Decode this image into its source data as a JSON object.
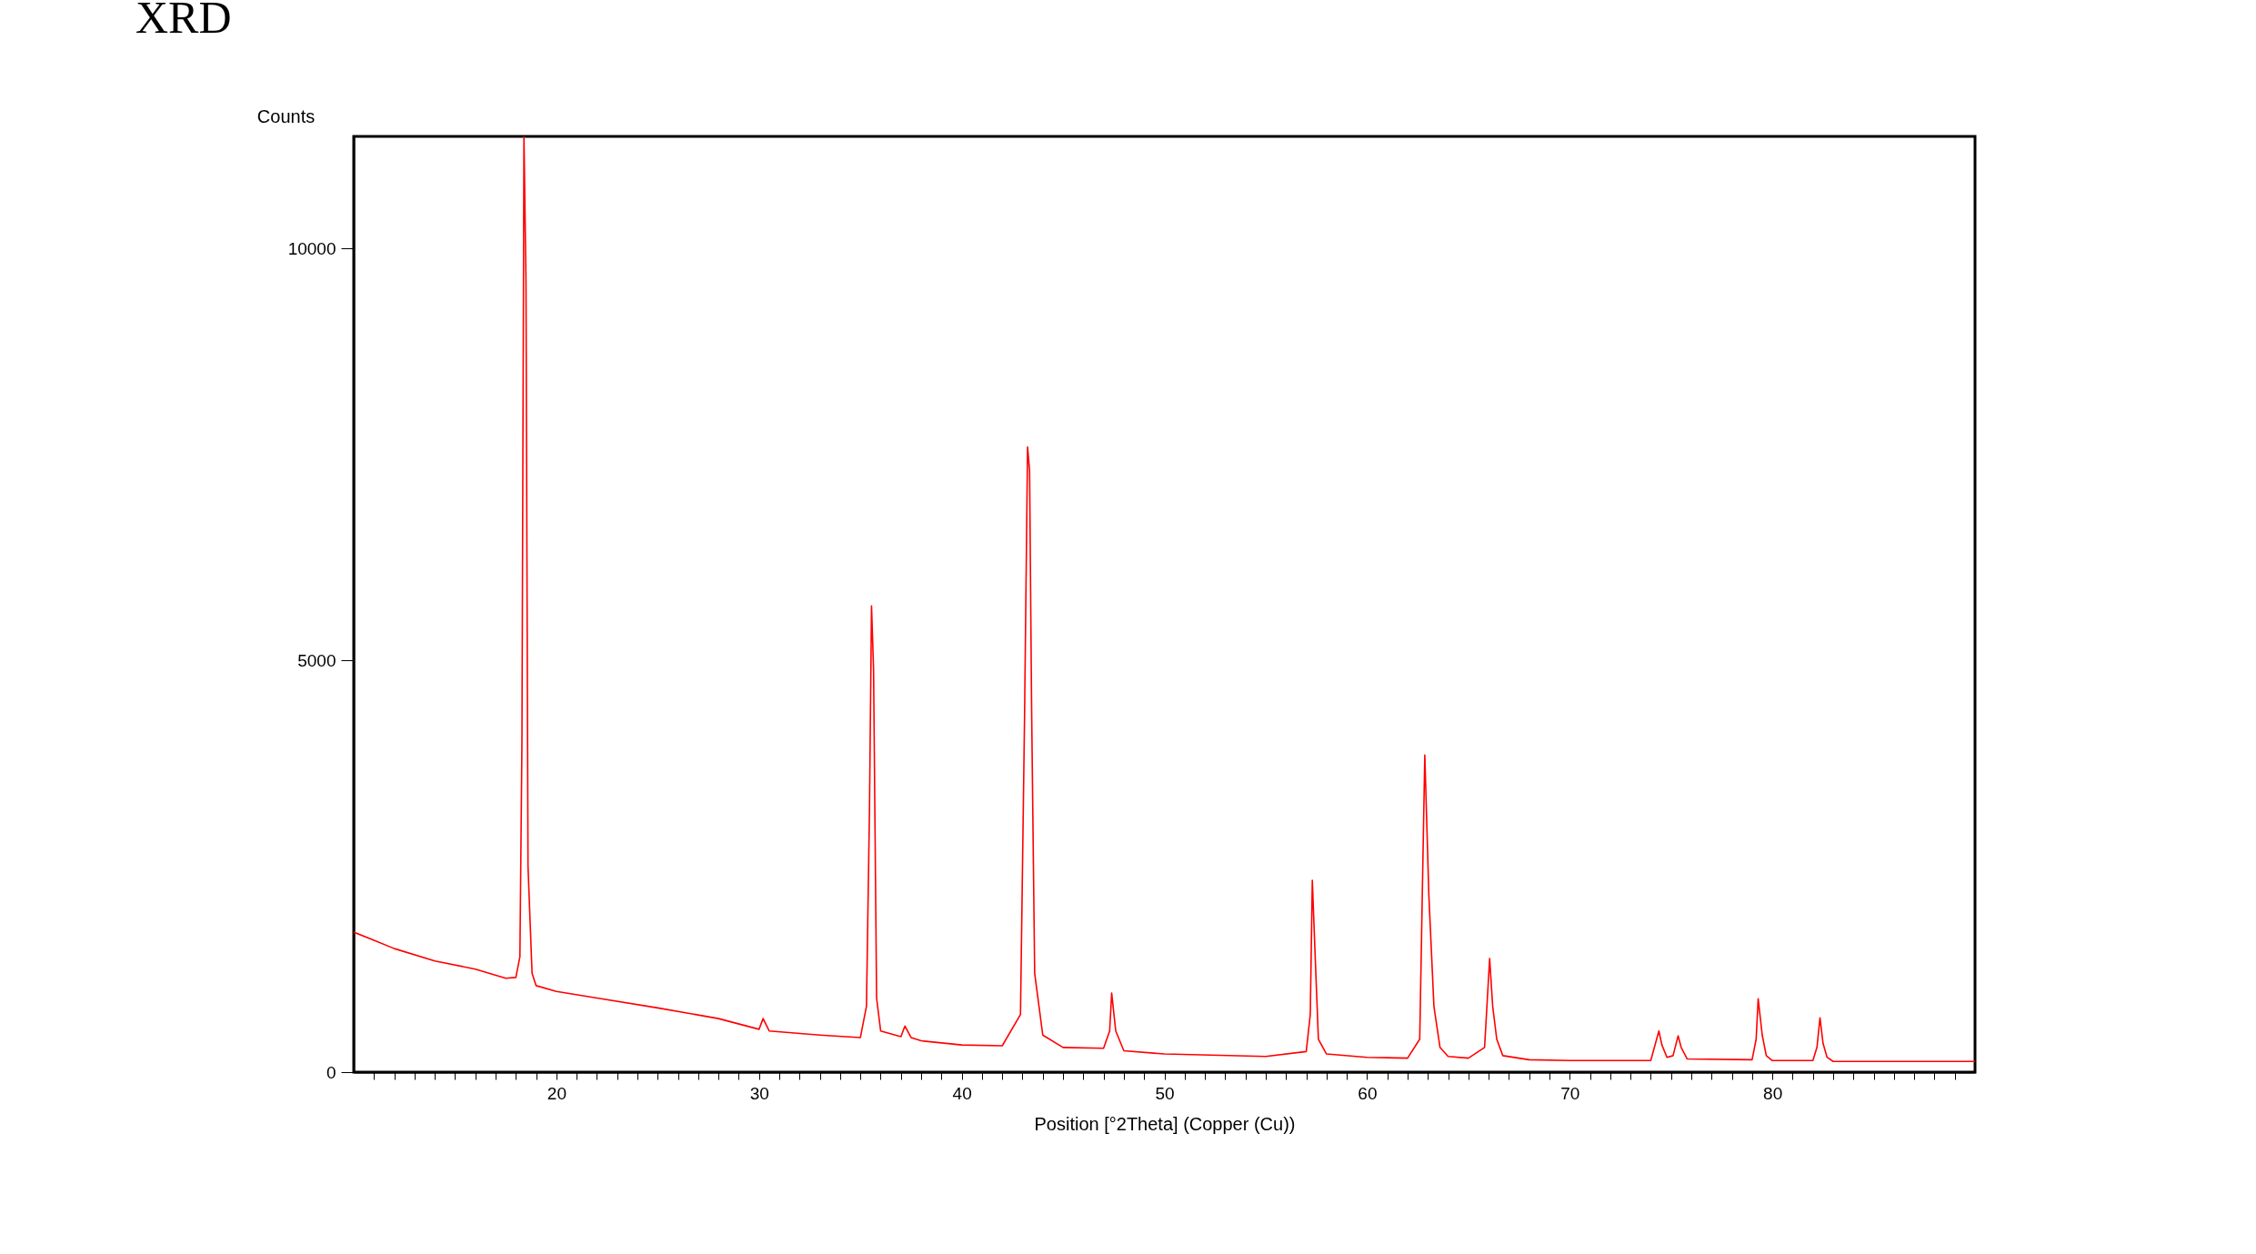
{
  "chart_data": {
    "type": "line",
    "title": "XRD",
    "xlabel": "Position [°2Theta] (Copper (Cu))",
    "ylabel": "Counts",
    "xlim": [
      10,
      90
    ],
    "ylim": [
      0,
      11360
    ],
    "xticks": [
      {
        "value": 11,
        "label": null
      },
      {
        "value": 12,
        "label": null
      },
      {
        "value": 13,
        "label": null
      },
      {
        "value": 14,
        "label": null
      },
      {
        "value": 15,
        "label": null
      },
      {
        "value": 16,
        "label": null
      },
      {
        "value": 17,
        "label": null
      },
      {
        "value": 18,
        "label": null
      },
      {
        "value": 19,
        "label": null
      },
      20,
      {
        "value": 21,
        "label": null
      },
      {
        "value": 22,
        "label": null
      },
      {
        "value": 23,
        "label": null
      },
      {
        "value": 24,
        "label": null
      },
      {
        "value": 25,
        "label": null
      },
      {
        "value": 26,
        "label": null
      },
      {
        "value": 27,
        "label": null
      },
      {
        "value": 28,
        "label": null
      },
      {
        "value": 29,
        "label": null
      },
      30,
      {
        "value": 31,
        "label": null
      },
      {
        "value": 32,
        "label": null
      },
      {
        "value": 33,
        "label": null
      },
      {
        "value": 34,
        "label": null
      },
      {
        "value": 35,
        "label": null
      },
      {
        "value": 36,
        "label": null
      },
      {
        "value": 37,
        "label": null
      },
      {
        "value": 38,
        "label": null
      },
      {
        "value": 39,
        "label": null
      },
      40,
      {
        "value": 41,
        "label": null
      },
      {
        "value": 42,
        "label": null
      },
      {
        "value": 43,
        "label": null
      },
      {
        "value": 44,
        "label": null
      },
      {
        "value": 45,
        "label": null
      },
      {
        "value": 46,
        "label": null
      },
      {
        "value": 47,
        "label": null
      },
      {
        "value": 48,
        "label": null
      },
      {
        "value": 49,
        "label": null
      },
      50,
      {
        "value": 51,
        "label": null
      },
      {
        "value": 52,
        "label": null
      },
      {
        "value": 53,
        "label": null
      },
      {
        "value": 54,
        "label": null
      },
      {
        "value": 55,
        "label": null
      },
      {
        "value": 56,
        "label": null
      },
      {
        "value": 57,
        "label": null
      },
      {
        "value": 58,
        "label": null
      },
      {
        "value": 59,
        "label": null
      },
      60,
      {
        "value": 61,
        "label": null
      },
      {
        "value": 62,
        "label": null
      },
      {
        "value": 63,
        "label": null
      },
      {
        "value": 64,
        "label": null
      },
      {
        "value": 65,
        "label": null
      },
      {
        "value": 66,
        "label": null
      },
      {
        "value": 67,
        "label": null
      },
      {
        "value": 68,
        "label": null
      },
      {
        "value": 69,
        "label": null
      },
      70,
      {
        "value": 71,
        "label": null
      },
      {
        "value": 72,
        "label": null
      },
      {
        "value": 73,
        "label": null
      },
      {
        "value": 74,
        "label": null
      },
      {
        "value": 75,
        "label": null
      },
      {
        "value": 76,
        "label": null
      },
      {
        "value": 77,
        "label": null
      },
      {
        "value": 78,
        "label": null
      },
      {
        "value": 79,
        "label": null
      },
      80,
      {
        "value": 81,
        "label": null
      },
      {
        "value": 82,
        "label": null
      },
      {
        "value": 83,
        "label": null
      },
      {
        "value": 84,
        "label": null
      },
      {
        "value": 85,
        "label": null
      },
      {
        "value": 86,
        "label": null
      },
      {
        "value": 87,
        "label": null
      },
      {
        "value": 88,
        "label": null
      },
      {
        "value": 89,
        "label": null
      }
    ],
    "yticks": [
      0,
      5000,
      10000
    ],
    "series": [
      {
        "color": "#ff0000",
        "x": [
          10,
          11,
          12,
          14,
          16,
          17.5,
          18,
          18.2,
          18.3,
          18.4,
          18.5,
          18.6,
          18.8,
          19,
          20,
          22,
          25,
          28,
          30,
          30.2,
          30.5,
          33,
          35,
          35.3,
          35.45,
          35.55,
          35.65,
          35.8,
          36,
          37,
          37.2,
          37.5,
          38,
          40,
          42,
          42.9,
          43.1,
          43.25,
          43.35,
          43.45,
          43.6,
          44,
          45,
          47,
          47.3,
          47.4,
          47.6,
          48,
          50,
          55,
          57,
          57.2,
          57.3,
          57.45,
          57.6,
          58,
          60,
          62,
          62.6,
          62.85,
          63.05,
          63.3,
          63.6,
          64,
          65,
          65.8,
          66.05,
          66.2,
          66.4,
          66.7,
          68,
          70,
          74,
          74.4,
          74.55,
          74.8,
          75.1,
          75.35,
          75.5,
          75.8,
          79,
          79.2,
          79.3,
          79.5,
          79.7,
          80,
          82,
          82.2,
          82.35,
          82.5,
          82.7,
          83,
          86,
          90
        ],
        "values": [
          1700,
          1600,
          1500,
          1350,
          1250,
          1140,
          1150,
          1400,
          4000,
          11360,
          9600,
          2500,
          1200,
          1050,
          980,
          900,
          780,
          650,
          520,
          650,
          500,
          450,
          420,
          800,
          3200,
          5660,
          4900,
          900,
          500,
          430,
          560,
          420,
          380,
          330,
          320,
          700,
          4300,
          7590,
          7300,
          4400,
          1200,
          450,
          300,
          290,
          500,
          960,
          500,
          260,
          220,
          190,
          250,
          700,
          2330,
          1350,
          400,
          220,
          180,
          170,
          400,
          3850,
          2150,
          800,
          300,
          190,
          170,
          300,
          1380,
          800,
          400,
          200,
          150,
          140,
          140,
          500,
          330,
          180,
          200,
          440,
          300,
          160,
          150,
          400,
          890,
          450,
          200,
          140,
          140,
          300,
          660,
          350,
          180,
          130,
          130,
          130
        ]
      }
    ]
  }
}
